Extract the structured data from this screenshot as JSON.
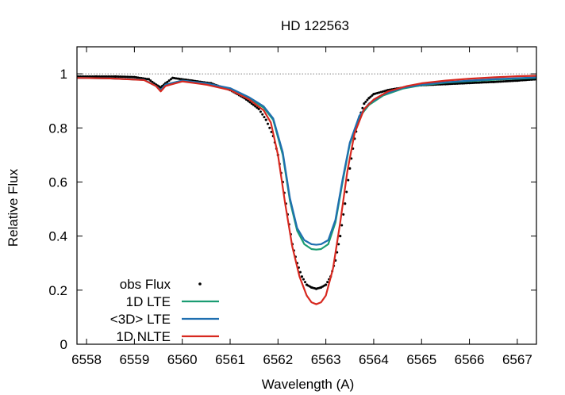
{
  "chart_data": {
    "type": "line",
    "title": "HD 122563",
    "xlabel": "Wavelength (A)",
    "ylabel": "Relative Flux",
    "xlim": [
      6557.8,
      6567.4
    ],
    "ylim": [
      0,
      1.1
    ],
    "xticks": [
      6558,
      6559,
      6560,
      6561,
      6562,
      6563,
      6564,
      6565,
      6566,
      6567
    ],
    "yticks": [
      0,
      0.2,
      0.4,
      0.6,
      0.8,
      1
    ],
    "ytick_labels": [
      "0",
      "0.2",
      "0.4",
      "0.6",
      "0.8",
      "1"
    ],
    "reference_line": {
      "y": 1.0,
      "style": "dotted"
    },
    "legend": {
      "placement": "bottom-left"
    },
    "series": [
      {
        "name": "obs Flux",
        "kind": "points",
        "color": "#000000",
        "x": [
          6557.8,
          6558.2,
          6558.6,
          6559.0,
          6559.3,
          6559.45,
          6559.55,
          6559.65,
          6559.8,
          6560.2,
          6560.6,
          6561.0,
          6561.3,
          6561.6,
          6561.75,
          6561.9,
          6562.0,
          6562.1,
          6562.2,
          6562.3,
          6562.4,
          6562.5,
          6562.6,
          6562.7,
          6562.8,
          6562.9,
          6563.0,
          6563.1,
          6563.2,
          6563.3,
          6563.4,
          6563.5,
          6563.6,
          6563.7,
          6563.8,
          6563.9,
          6564.0,
          6564.3,
          6564.7,
          6565.0,
          6565.5,
          6566.0,
          6566.5,
          6567.0,
          6567.4
        ],
        "y": [
          0.99,
          0.99,
          0.99,
          0.988,
          0.98,
          0.96,
          0.95,
          0.965,
          0.985,
          0.975,
          0.965,
          0.94,
          0.91,
          0.87,
          0.83,
          0.77,
          0.7,
          0.6,
          0.48,
          0.37,
          0.3,
          0.25,
          0.22,
          0.21,
          0.205,
          0.21,
          0.22,
          0.25,
          0.31,
          0.4,
          0.52,
          0.65,
          0.76,
          0.84,
          0.89,
          0.91,
          0.925,
          0.94,
          0.952,
          0.958,
          0.962,
          0.966,
          0.97,
          0.975,
          0.98
        ]
      },
      {
        "name": "1D LTE",
        "kind": "line",
        "color": "#1a9c72",
        "x": [
          6557.8,
          6558.5,
          6559.2,
          6559.45,
          6559.55,
          6559.65,
          6560.0,
          6560.5,
          6561.0,
          6561.4,
          6561.7,
          6561.9,
          6562.1,
          6562.25,
          6562.4,
          6562.55,
          6562.7,
          6562.8,
          6562.9,
          6563.05,
          6563.2,
          6563.35,
          6563.5,
          6563.7,
          6563.9,
          6564.2,
          6564.6,
          6565.0,
          6565.5,
          6566.0,
          6566.5,
          6567.0,
          6567.4
        ],
        "y": [
          0.985,
          0.983,
          0.978,
          0.955,
          0.94,
          0.96,
          0.975,
          0.965,
          0.945,
          0.91,
          0.875,
          0.83,
          0.7,
          0.53,
          0.42,
          0.37,
          0.352,
          0.35,
          0.352,
          0.37,
          0.45,
          0.6,
          0.74,
          0.84,
          0.885,
          0.92,
          0.945,
          0.958,
          0.967,
          0.973,
          0.978,
          0.982,
          0.985
        ]
      },
      {
        "name": "<3D> LTE",
        "kind": "line",
        "color": "#1f6fb0",
        "x": [
          6557.8,
          6558.5,
          6559.2,
          6559.45,
          6559.55,
          6559.65,
          6560.0,
          6560.5,
          6561.0,
          6561.4,
          6561.7,
          6561.9,
          6562.1,
          6562.25,
          6562.4,
          6562.55,
          6562.7,
          6562.8,
          6562.9,
          6563.05,
          6563.2,
          6563.35,
          6563.5,
          6563.7,
          6563.9,
          6564.2,
          6564.6,
          6565.0,
          6565.5,
          6566.0,
          6566.5,
          6567.0,
          6567.4
        ],
        "y": [
          0.985,
          0.983,
          0.978,
          0.955,
          0.94,
          0.96,
          0.975,
          0.965,
          0.947,
          0.913,
          0.88,
          0.835,
          0.71,
          0.54,
          0.43,
          0.385,
          0.37,
          0.368,
          0.37,
          0.385,
          0.46,
          0.61,
          0.745,
          0.845,
          0.89,
          0.924,
          0.948,
          0.96,
          0.969,
          0.975,
          0.98,
          0.984,
          0.987
        ]
      },
      {
        "name": "1D NLTE",
        "kind": "line",
        "color": "#d7281f",
        "x": [
          6557.8,
          6558.5,
          6559.2,
          6559.45,
          6559.55,
          6559.65,
          6560.0,
          6560.5,
          6561.0,
          6561.4,
          6561.7,
          6561.85,
          6562.0,
          6562.15,
          6562.3,
          6562.45,
          6562.6,
          6562.7,
          6562.8,
          6562.9,
          6563.0,
          6563.15,
          6563.3,
          6563.45,
          6563.6,
          6563.8,
          6564.0,
          6564.3,
          6564.7,
          6565.0,
          6565.5,
          6566.0,
          6566.5,
          6567.0,
          6567.4
        ],
        "y": [
          0.985,
          0.983,
          0.977,
          0.955,
          0.935,
          0.955,
          0.972,
          0.96,
          0.94,
          0.905,
          0.865,
          0.82,
          0.7,
          0.52,
          0.36,
          0.25,
          0.18,
          0.155,
          0.148,
          0.155,
          0.18,
          0.28,
          0.45,
          0.64,
          0.78,
          0.87,
          0.905,
          0.935,
          0.955,
          0.965,
          0.975,
          0.982,
          0.987,
          0.991,
          0.993
        ]
      }
    ]
  }
}
